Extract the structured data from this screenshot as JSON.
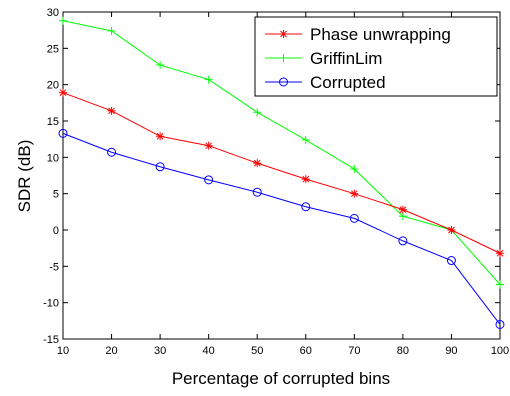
{
  "chart_data": {
    "type": "line",
    "title": "",
    "xlabel": "Percentage of corrupted bins",
    "ylabel": "SDR (dB)",
    "xlim": [
      10,
      100
    ],
    "ylim": [
      -15,
      30
    ],
    "x": [
      10,
      20,
      30,
      40,
      50,
      60,
      70,
      80,
      90,
      100
    ],
    "x_ticks": [
      "10",
      "20",
      "30",
      "40",
      "50",
      "60",
      "70",
      "80",
      "90",
      "100"
    ],
    "y_ticks": [
      "30",
      "25",
      "20",
      "15",
      "10",
      "5",
      "0",
      "-5",
      "-10",
      "-15"
    ],
    "grid": false,
    "legend_position": "top-right",
    "series": [
      {
        "name": "Phase unwrapping",
        "color": "#ff0000",
        "marker": "asterisk",
        "values": [
          18.9,
          16.4,
          12.9,
          11.6,
          9.2,
          7.0,
          5.0,
          2.8,
          0.0,
          -3.2
        ]
      },
      {
        "name": "GriffinLim",
        "color": "#00ff00",
        "marker": "plus",
        "values": [
          28.8,
          27.4,
          22.7,
          20.7,
          16.2,
          12.4,
          8.4,
          1.9,
          0.0,
          -7.5
        ]
      },
      {
        "name": "Corrupted",
        "color": "#0000ff",
        "marker": "circle",
        "values": [
          13.3,
          10.7,
          8.7,
          6.9,
          5.2,
          3.2,
          1.6,
          -1.5,
          -4.2,
          -13.0
        ]
      }
    ]
  }
}
